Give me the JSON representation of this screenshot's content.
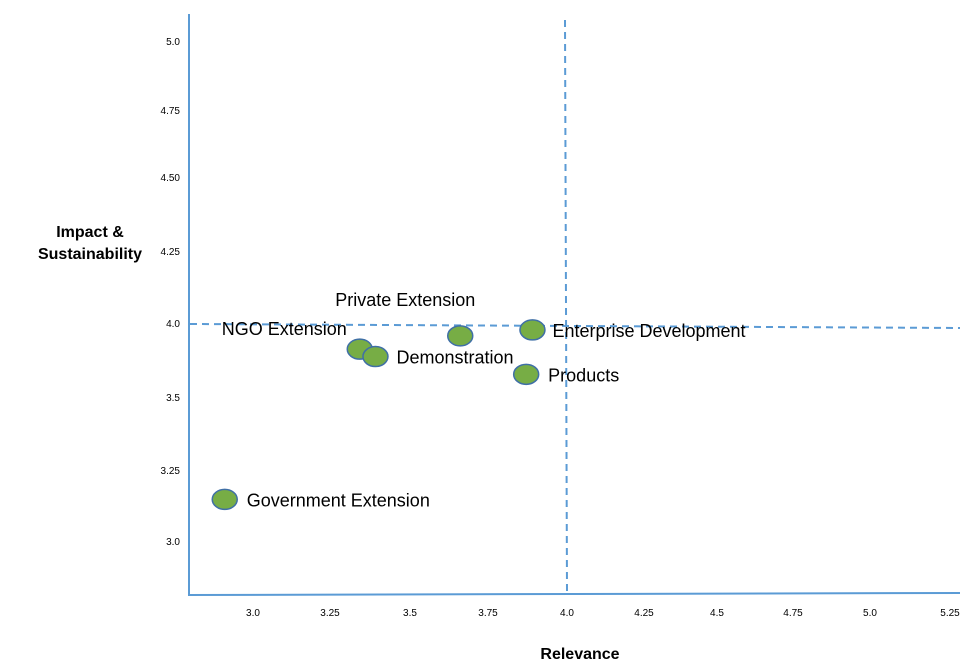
{
  "chart_data": {
    "type": "scatter",
    "title": "",
    "xlabel": "Relevance",
    "ylabel_lines": [
      "Impact &",
      "Sustainability"
    ],
    "x_ticks": [
      "3.0",
      "3.25",
      "3.5",
      "3.75",
      "4.0",
      "4.25",
      "4.5",
      "4.75",
      "5.0",
      "5.25"
    ],
    "y_ticks": [
      "3.0",
      "3.25",
      "3.5",
      "4.0",
      "4.25",
      "4.50",
      "4.75",
      "5.0"
    ],
    "quadrant_lines": {
      "x": 4.0,
      "y": 4.0
    },
    "point_color": "#77ad45",
    "point_stroke": "#3f6fa6",
    "axis_color": "#5b9bd5",
    "points": [
      {
        "label": "Private Extension",
        "x": 3.66,
        "y": 3.92
      },
      {
        "label": "Enterprise Development",
        "x": 3.89,
        "y": 3.96
      },
      {
        "label": "NGO Extension",
        "x": 3.34,
        "y": 3.83
      },
      {
        "label": "Demonstration",
        "x": 3.39,
        "y": 3.78
      },
      {
        "label": "Products",
        "x": 3.87,
        "y": 3.66
      },
      {
        "label": "Government Extension",
        "x": 2.91,
        "y": 3.15
      }
    ]
  }
}
